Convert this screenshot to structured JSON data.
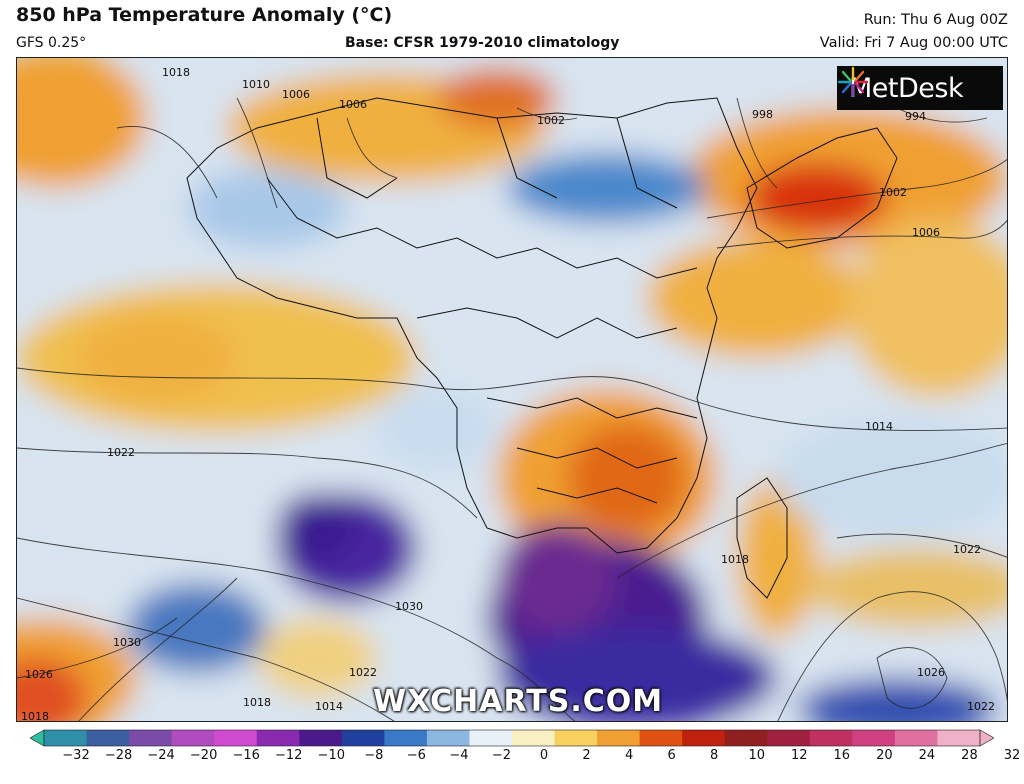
{
  "header": {
    "title": "850 hPa Temperature Anomaly (°C)",
    "model": "GFS 0.25°",
    "base": "Base: CFSR 1979-2010 climatology",
    "run": "Run: Thu 6 Aug 00Z",
    "valid": "Valid: Fri 7 Aug 00:00 UTC"
  },
  "logo": {
    "text": "MetDesk",
    "icon": "starburst-icon"
  },
  "watermark": "WXCHARTS.COM",
  "isobar_labels": [
    "1018",
    "1010",
    "1006",
    "1006",
    "1002",
    "998",
    "994",
    "1002",
    "1006",
    "1022",
    "1014",
    "1022",
    "1018",
    "1030",
    "1030",
    "1026",
    "1022",
    "1018",
    "1014",
    "1026",
    "1022",
    "1018"
  ],
  "colorbar": {
    "ticks": [
      "−32",
      "−28",
      "−24",
      "−20",
      "−16",
      "−12",
      "−10",
      "−8",
      "−6",
      "−4",
      "−2",
      "0",
      "2",
      "4",
      "6",
      "8",
      "10",
      "12",
      "16",
      "20",
      "24",
      "28",
      "32"
    ],
    "colors": [
      "#2fbfa0",
      "#2f8fa8",
      "#3b5fa0",
      "#7a4ba8",
      "#b04cc0",
      "#d04ad0",
      "#8a2ab0",
      "#4a1a8a",
      "#2040a0",
      "#3a78c8",
      "#8ab8e0",
      "#e8f0f8",
      "#f8f0c0",
      "#f8d060",
      "#f0a030",
      "#e05010",
      "#c02010",
      "#902020",
      "#a02040",
      "#c03060",
      "#d04080",
      "#e070a0",
      "#f0b0c8"
    ]
  }
}
